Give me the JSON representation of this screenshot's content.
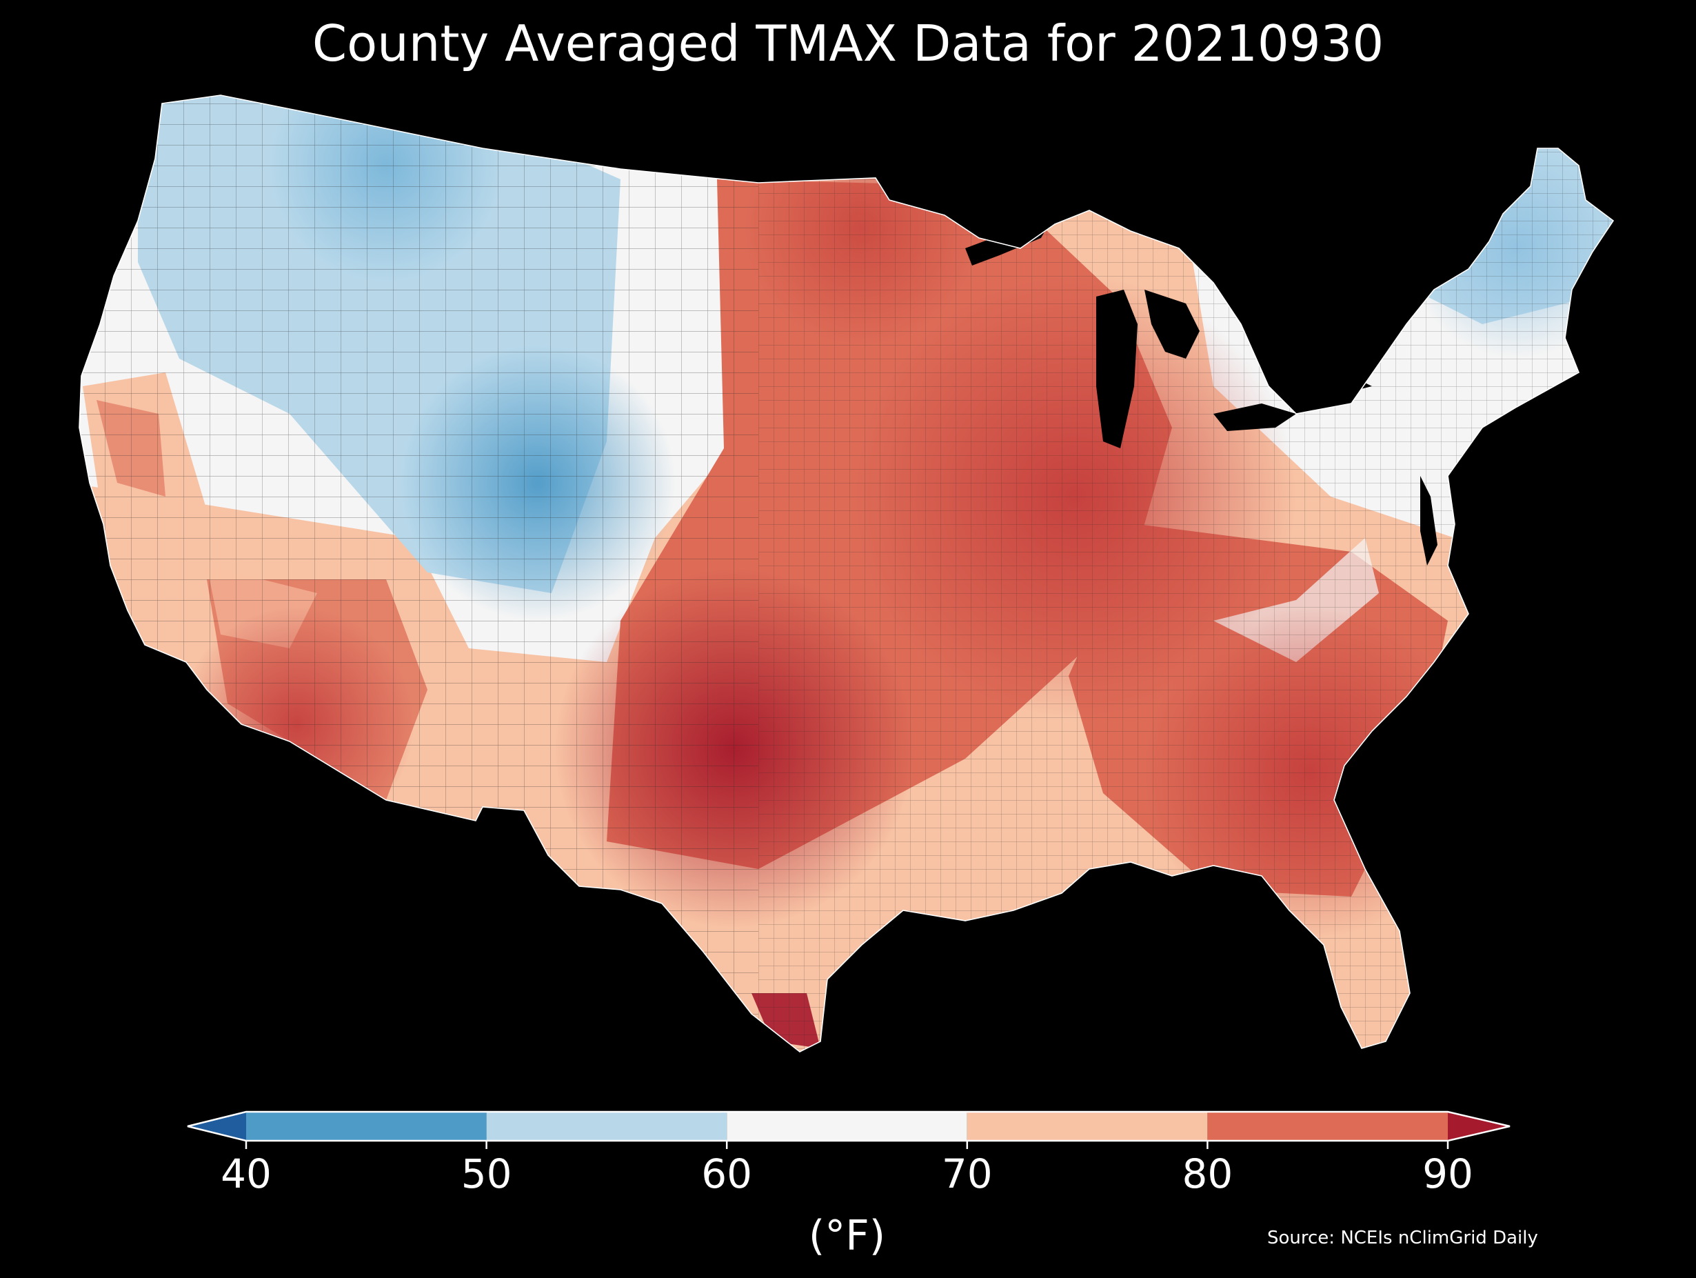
{
  "title": "County Averaged TMAX Data for 20210930",
  "source": "Source: NCEIs nClimGrid Daily",
  "colorbar": {
    "label": "(°F)",
    "ticks": [
      "40",
      "50",
      "60",
      "70",
      "80",
      "90"
    ],
    "bins": [
      {
        "min": 40,
        "max": 50,
        "color": "#4f9bc8"
      },
      {
        "min": 50,
        "max": 60,
        "color": "#b8d8ea"
      },
      {
        "min": 60,
        "max": 70,
        "color": "#f5f5f5"
      },
      {
        "min": 70,
        "max": 80,
        "color": "#f8c2a4"
      },
      {
        "min": 80,
        "max": 90,
        "color": "#dd6b56"
      }
    ],
    "under_color": "#1f5d9e",
    "over_color": "#a51a2c"
  },
  "map": {
    "colors": {
      "land_stroke": "#2a2a2a",
      "coast": "#ffffff",
      "water": "#000000"
    }
  }
}
